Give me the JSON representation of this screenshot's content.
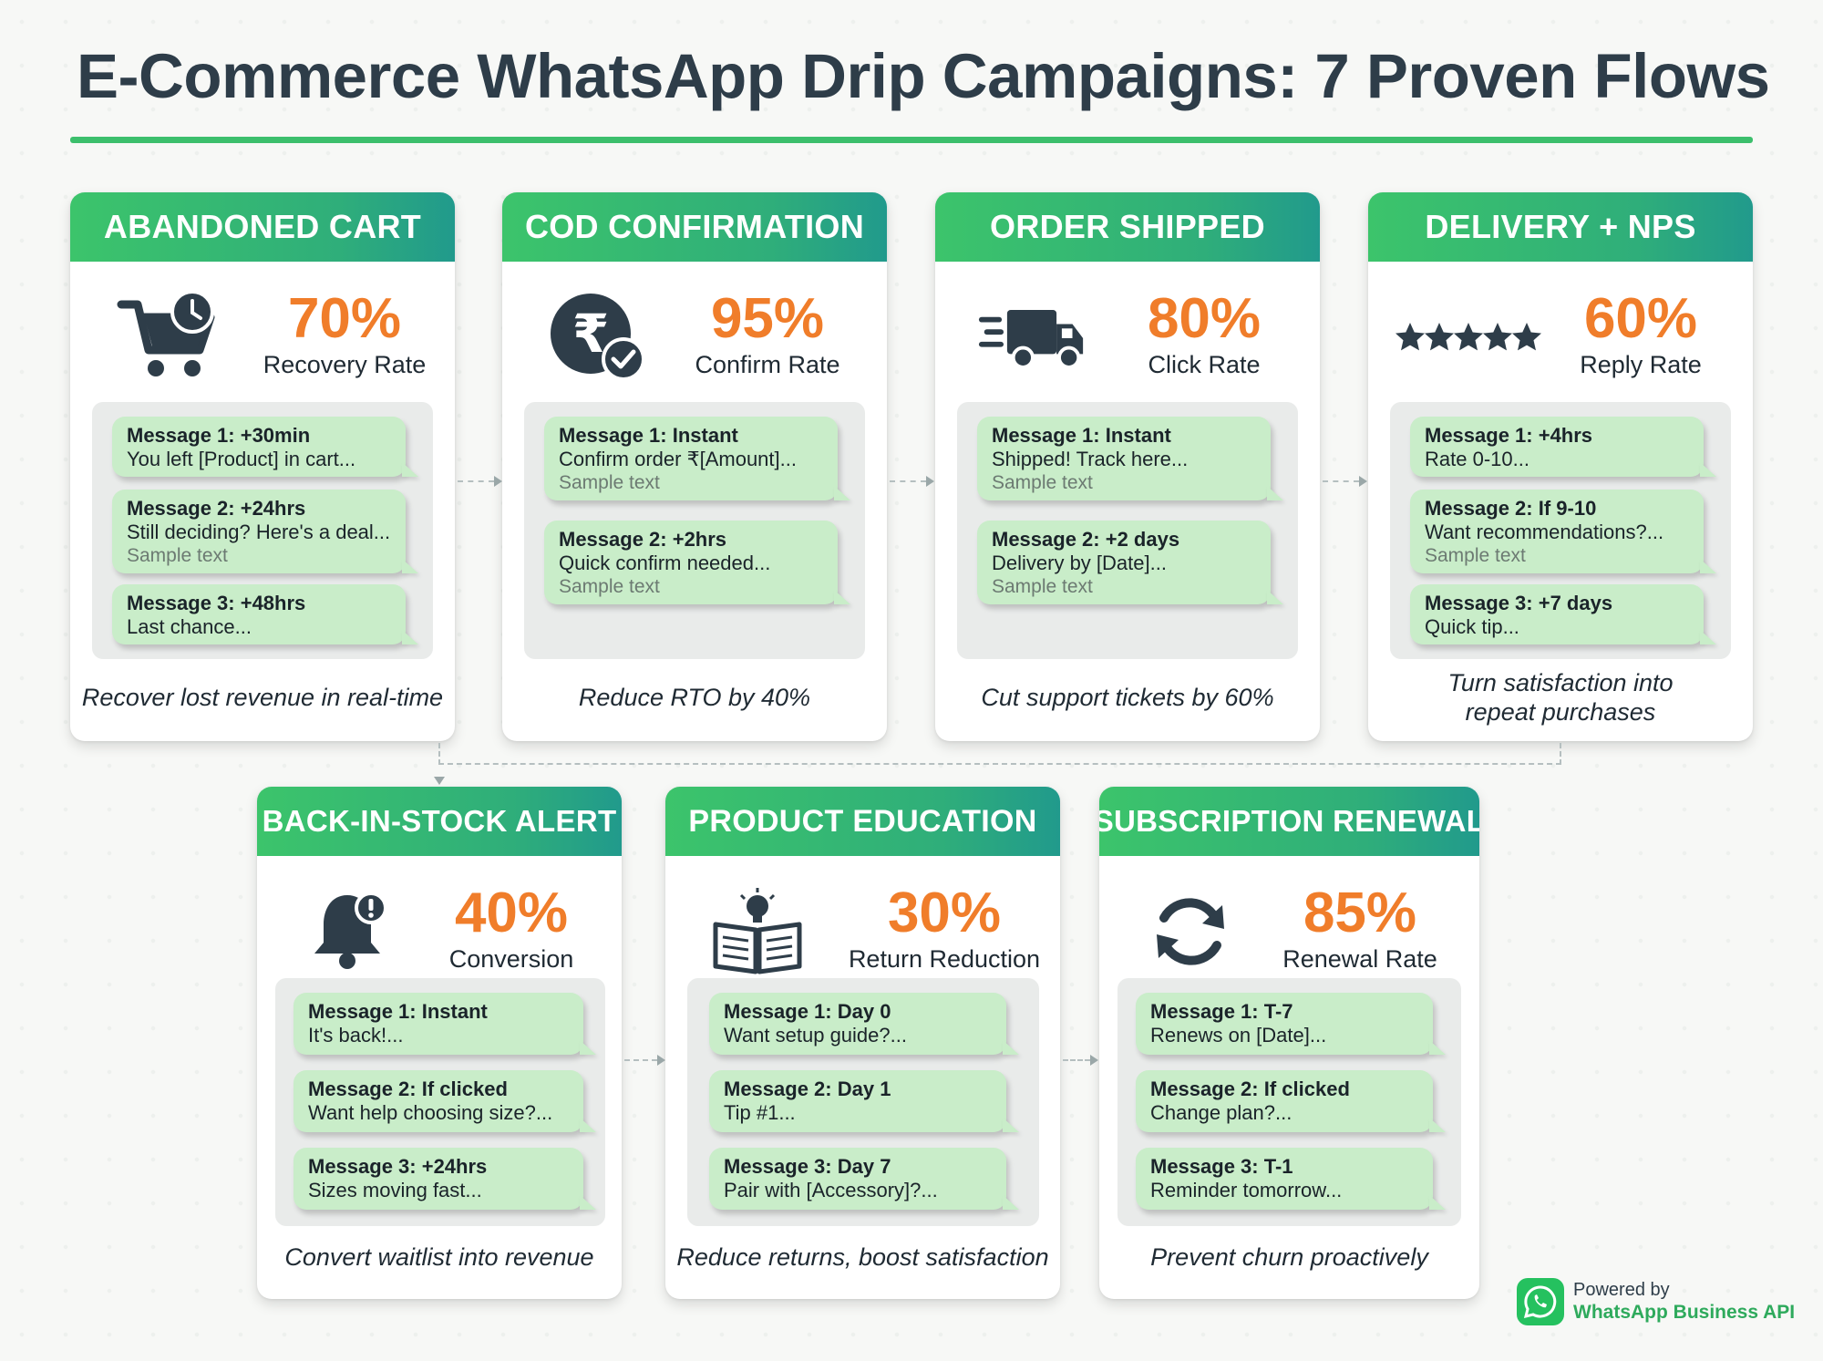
{
  "title": "E-Commerce WhatsApp Drip Campaigns: 7 Proven Flows",
  "colors": {
    "accent_green": "#3cbf6c",
    "header_gradient_end": "#219a8c",
    "stat_orange": "#f07d2a",
    "bubble_green": "#c9edc9",
    "icon_dark": "#2e3d49"
  },
  "flows": [
    {
      "name": "ABANDONED CART",
      "icon": "shopping-cart-clock-icon",
      "stat_value": "70%",
      "stat_label": "Recovery Rate",
      "messages": [
        {
          "title": "Message 1: +30min",
          "body": "You left [Product] in cart...",
          "sample": ""
        },
        {
          "title": "Message 2: +24hrs",
          "body": "Still deciding? Here's a deal...",
          "sample": "Sample text"
        },
        {
          "title": "Message 3: +48hrs",
          "body": "Last chance...",
          "sample": ""
        }
      ],
      "caption": "Recover lost revenue in real-time"
    },
    {
      "name": "COD CONFIRMATION",
      "icon": "rupee-check-icon",
      "stat_value": "95%",
      "stat_label": "Confirm Rate",
      "messages": [
        {
          "title": "Message 1: Instant",
          "body": "Confirm order ₹[Amount]...",
          "sample": "Sample text"
        },
        {
          "title": "Message 2: +2hrs",
          "body": "Quick confirm needed...",
          "sample": "Sample text"
        }
      ],
      "caption": "Reduce RTO by 40%"
    },
    {
      "name": "ORDER SHIPPED",
      "icon": "delivery-truck-icon",
      "stat_value": "80%",
      "stat_label": "Click Rate",
      "messages": [
        {
          "title": "Message 1: Instant",
          "body": "Shipped! Track here...",
          "sample": "Sample text"
        },
        {
          "title": "Message 2: +2 days",
          "body": "Delivery by [Date]...",
          "sample": "Sample text"
        }
      ],
      "caption": "Cut support tickets by 60%"
    },
    {
      "name": "DELIVERY + NPS",
      "icon": "five-stars-icon",
      "stat_value": "60%",
      "stat_label": "Reply Rate",
      "messages": [
        {
          "title": "Message 1: +4hrs",
          "body": "Rate 0-10...",
          "sample": ""
        },
        {
          "title": "Message 2: If 9-10",
          "body": "Want recommendations?...",
          "sample": "Sample text"
        },
        {
          "title": "Message 3: +7 days",
          "body": "Quick tip...",
          "sample": ""
        }
      ],
      "caption_line1": "Turn satisfaction into",
      "caption_line2": "repeat purchases"
    },
    {
      "name": "BACK-IN-STOCK ALERT",
      "icon": "bell-alert-icon",
      "stat_value": "40%",
      "stat_label": "Conversion",
      "messages": [
        {
          "title": "Message 1: Instant",
          "body": "It's back!...",
          "sample": ""
        },
        {
          "title": "Message 2: If clicked",
          "body": "Want help choosing size?...",
          "sample": ""
        },
        {
          "title": "Message 3: +24hrs",
          "body": "Sizes moving fast...",
          "sample": ""
        }
      ],
      "caption": "Convert waitlist into revenue"
    },
    {
      "name": "PRODUCT EDUCATION",
      "icon": "open-book-lightbulb-icon",
      "stat_value": "30%",
      "stat_label": "Return Reduction",
      "messages": [
        {
          "title": "Message 1: Day 0",
          "body": "Want setup guide?...",
          "sample": ""
        },
        {
          "title": "Message 2: Day 1",
          "body": "Tip #1...",
          "sample": ""
        },
        {
          "title": "Message 3: Day 7",
          "body": "Pair with [Accessory]?...",
          "sample": ""
        }
      ],
      "caption": "Reduce returns, boost satisfaction"
    },
    {
      "name": "SUBSCRIPTION RENEWAL",
      "icon": "refresh-cycle-icon",
      "stat_value": "85%",
      "stat_label": "Renewal Rate",
      "messages": [
        {
          "title": "Message 1: T-7",
          "body": "Renews on [Date]...",
          "sample": ""
        },
        {
          "title": "Message 2: If clicked",
          "body": "Change plan?...",
          "sample": ""
        },
        {
          "title": "Message 3: T-1",
          "body": "Reminder tomorrow...",
          "sample": ""
        }
      ],
      "caption": "Prevent churn proactively"
    }
  ],
  "footer": {
    "powered_by": "Powered by",
    "product": "WhatsApp Business API",
    "icon": "whatsapp-logo-icon"
  }
}
